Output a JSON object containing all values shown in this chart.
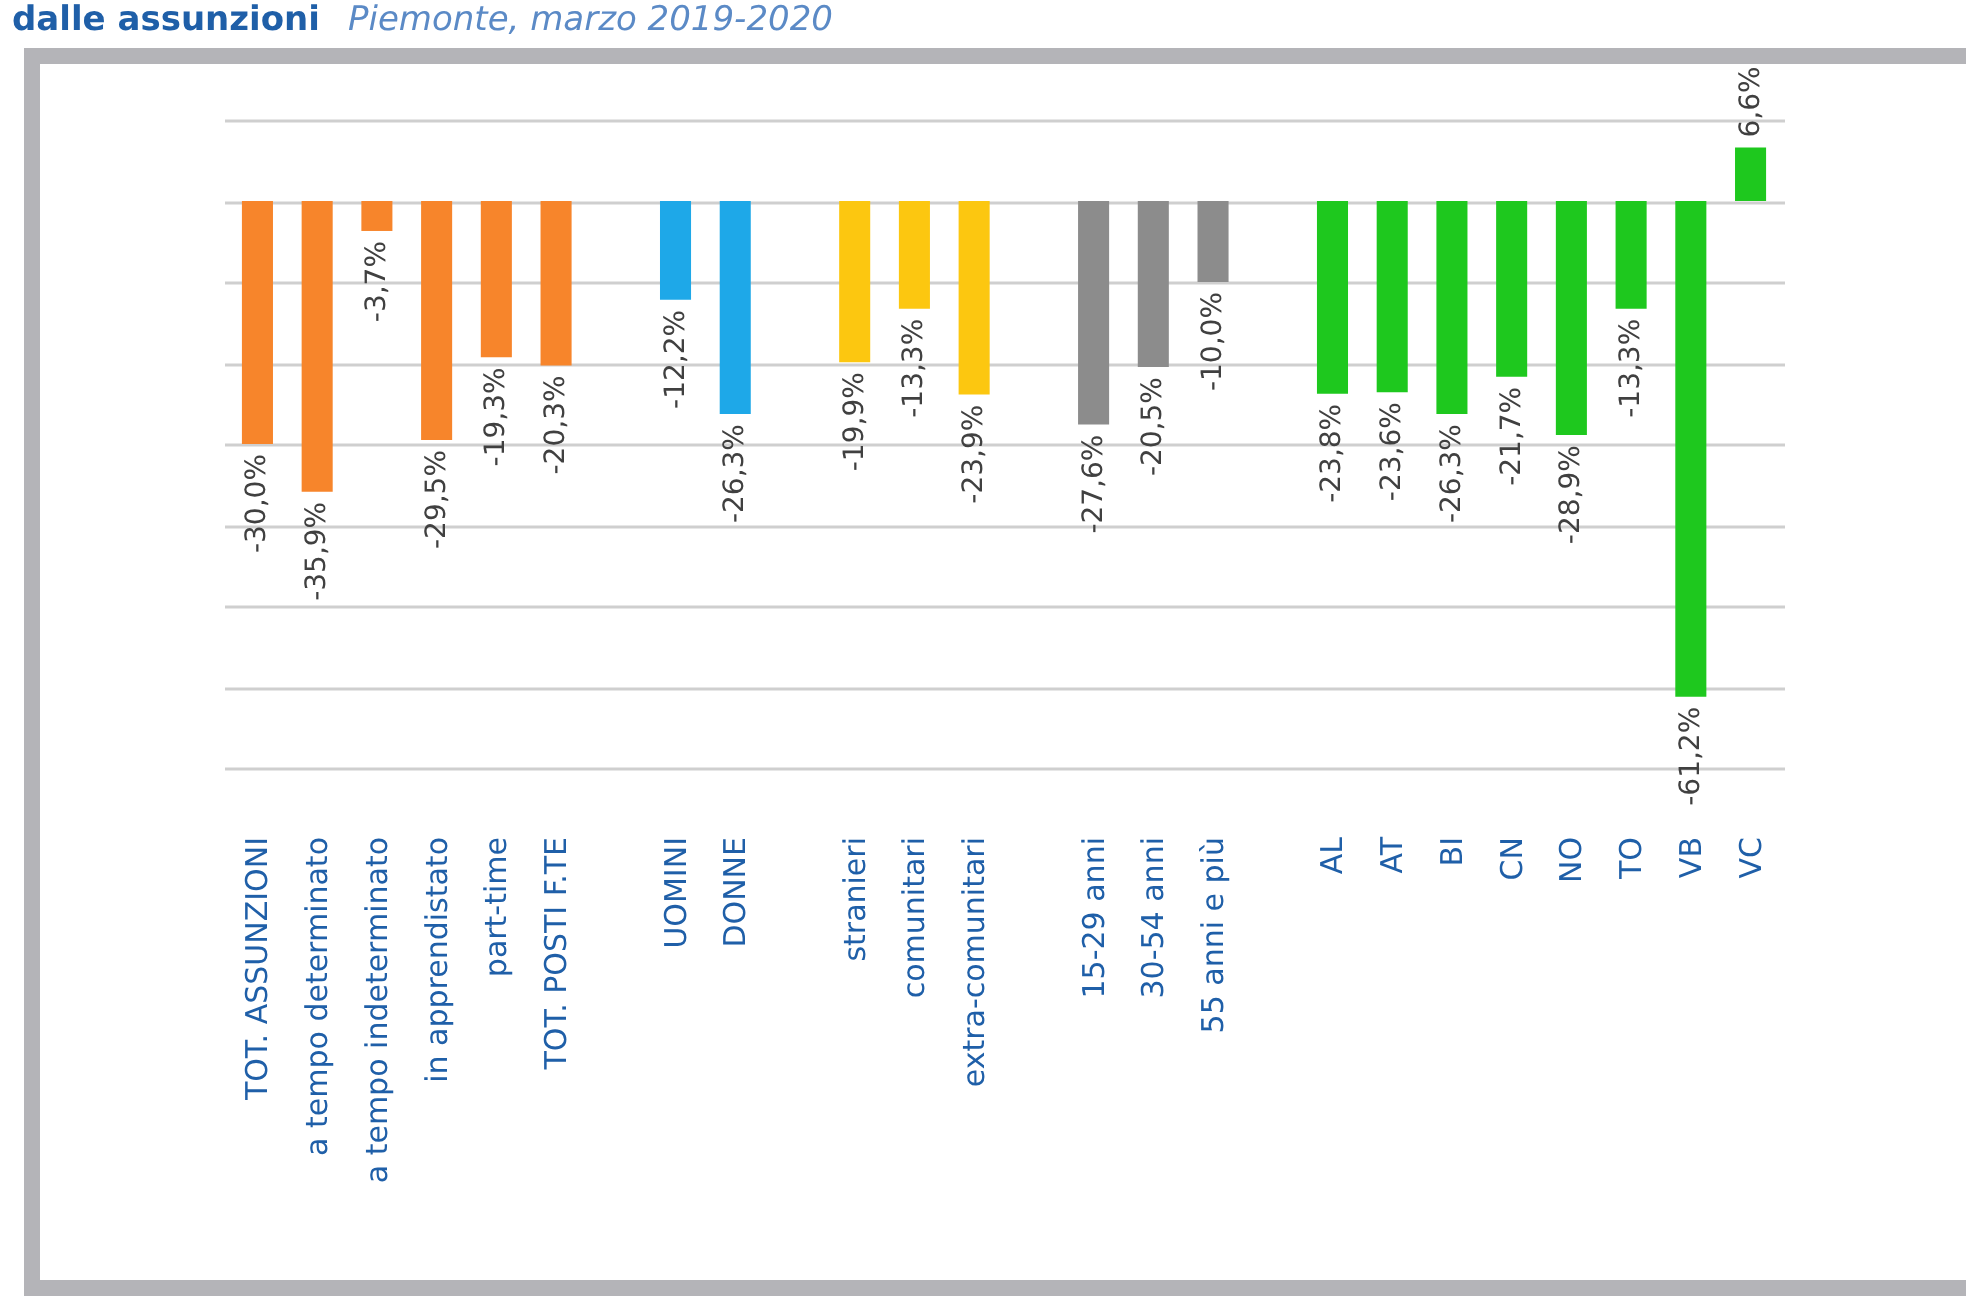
{
  "chart_data": {
    "type": "bar",
    "title": "dalle assunzioni",
    "subtitle": "Piemonte, marzo 2019-2020",
    "categories": [
      "TOT. ASSUNZIONI",
      "a tempo determinato",
      "a tempo indeterminato",
      "in apprendistato",
      "part-time",
      "TOT. POSTI F.TE",
      null,
      "UOMINI",
      "DONNE",
      null,
      "stranieri",
      "comunitari",
      "extra-comunitari",
      null,
      "15-29 anni",
      "30-54 anni",
      "55 anni e più",
      null,
      "AL",
      "AT",
      "BI",
      "CN",
      "NO",
      "TO",
      "VB",
      "VC"
    ],
    "values": [
      -30.0,
      -35.9,
      -3.7,
      -29.5,
      -19.3,
      -20.3,
      null,
      -12.2,
      -26.3,
      null,
      -19.9,
      -13.3,
      -23.9,
      null,
      -27.6,
      -20.5,
      -10.0,
      null,
      -23.8,
      -23.6,
      -26.3,
      -21.7,
      -28.9,
      -13.3,
      -61.2,
      6.6
    ],
    "value_labels": [
      "-30,0%",
      "-35,9%",
      "-3,7%",
      "-29,5%",
      "-19,3%",
      "-20,3%",
      null,
      "-12,2%",
      "-26,3%",
      null,
      "-19,9%",
      "-13,3%",
      "-23,9%",
      null,
      "-27,6%",
      "-20,5%",
      "-10,0%",
      null,
      "-23,8%",
      "-23,6%",
      "-26,3%",
      "-21,7%",
      "-28,9%",
      "-13,3%",
      "-61,2%",
      "6,6%"
    ],
    "colors": [
      "#f7852b",
      "#f7852b",
      "#f7852b",
      "#f7852b",
      "#f7852b",
      "#f7852b",
      null,
      "#1ea8e8",
      "#1ea8e8",
      null,
      "#fcc710",
      "#fcc710",
      "#fcc710",
      null,
      "#8c8c8c",
      "#8c8c8c",
      "#8c8c8c",
      null,
      "#1ec81e",
      "#1ec81e",
      "#1ec81e",
      "#1ec81e",
      "#1ec81e",
      "#1ec81e",
      "#1ec81e",
      "#1ec81e"
    ],
    "ylim": [
      -70,
      10
    ],
    "yticks": [
      {
        "value": 10,
        "label": null
      },
      {
        "value": 0,
        "label": null
      },
      {
        "value": -10,
        "label": null
      },
      {
        "value": -20,
        "label": null
      },
      {
        "value": -30,
        "label": null
      },
      {
        "value": -40,
        "label": null
      },
      {
        "value": -50,
        "label": null
      },
      {
        "value": -60,
        "label": null
      },
      {
        "value": -70,
        "label": null
      }
    ],
    "grid": "y"
  }
}
